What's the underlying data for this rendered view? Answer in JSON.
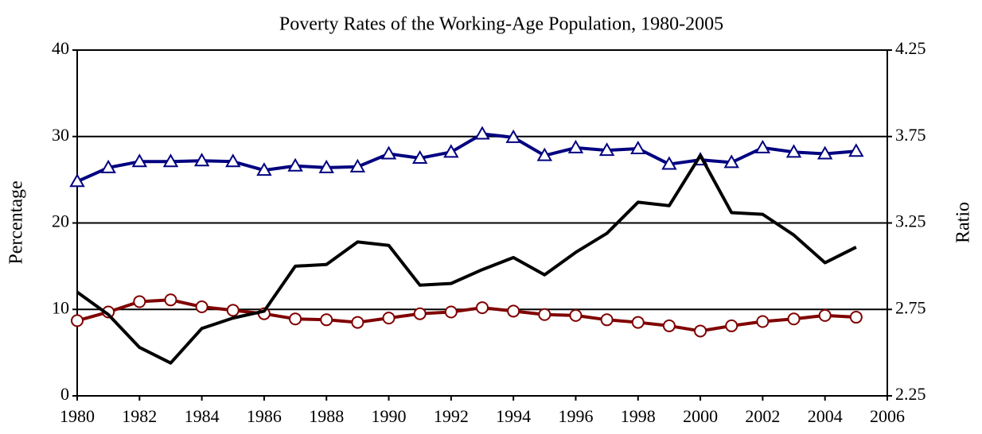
{
  "chart_data": {
    "type": "line",
    "title": "Poverty Rates of the Working-Age Population, 1980-2005",
    "ylabel": "Percentage",
    "y2label": "Ratio",
    "x": [
      1980,
      1981,
      1982,
      1983,
      1984,
      1985,
      1986,
      1987,
      1988,
      1989,
      1990,
      1991,
      1992,
      1993,
      1994,
      1995,
      1996,
      1997,
      1998,
      1999,
      2000,
      2001,
      2002,
      2003,
      2004,
      2005
    ],
    "xlim": [
      1980,
      2006
    ],
    "xticks": [
      1980,
      1982,
      1984,
      1986,
      1988,
      1990,
      1992,
      1994,
      1996,
      1998,
      2000,
      2002,
      2004,
      2006
    ],
    "ylim": [
      0,
      40
    ],
    "yticks": [
      0,
      10,
      20,
      30,
      40
    ],
    "y2lim": [
      2.25,
      4.25
    ],
    "y2ticks": [
      2.25,
      2.75,
      3.25,
      3.75,
      4.25
    ],
    "grid": true,
    "series": [
      {
        "color": "#000080",
        "marker": "triangle",
        "axis": "y",
        "values": [
          24.8,
          26.4,
          27.1,
          27.1,
          27.2,
          27.1,
          26.1,
          26.6,
          26.4,
          26.5,
          28.0,
          27.5,
          28.2,
          30.3,
          29.9,
          27.8,
          28.7,
          28.4,
          28.6,
          26.8,
          27.3,
          27.0,
          28.7,
          28.2,
          28.0,
          28.3
        ]
      },
      {
        "color": "#800000",
        "marker": "circle",
        "axis": "y",
        "values": [
          8.7,
          9.7,
          10.9,
          11.1,
          10.3,
          9.9,
          9.5,
          8.9,
          8.8,
          8.5,
          9.0,
          9.5,
          9.7,
          10.2,
          9.8,
          9.4,
          9.3,
          8.8,
          8.5,
          8.1,
          7.5,
          8.1,
          8.6,
          8.9,
          9.3,
          9.1
        ]
      },
      {
        "color": "#000000",
        "marker": "none",
        "axis": "y2",
        "values": [
          2.85,
          2.72,
          2.53,
          2.44,
          2.64,
          2.7,
          2.74,
          3.0,
          3.01,
          3.14,
          3.12,
          2.89,
          2.9,
          2.98,
          3.05,
          2.95,
          3.08,
          3.19,
          3.37,
          3.35,
          3.64,
          3.31,
          3.3,
          3.18,
          3.02,
          3.11
        ]
      }
    ]
  }
}
